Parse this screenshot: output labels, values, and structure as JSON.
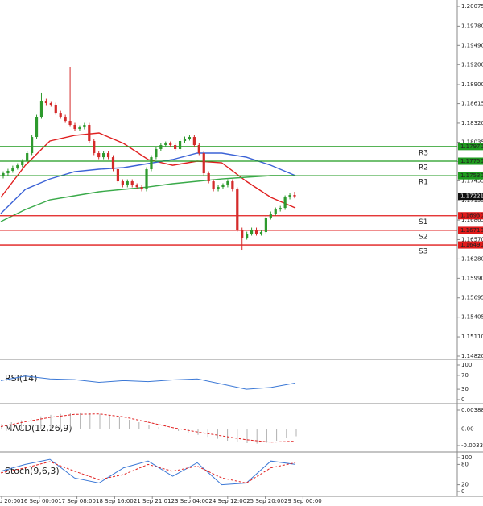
{
  "chart_data": {
    "type": "candlestick",
    "up_color": "#2e9a2e",
    "down_color": "#d42a2a",
    "ylim": [
      1.1482,
      1.20075
    ],
    "yticks": [
      1.20075,
      {
        "value": 1.1978,
        "label": "1.19780"
      },
      {
        "value": 1.1949,
        "label": "1.19490"
      },
      {
        "value": 1.192,
        "label": "1.19200"
      },
      {
        "value": 1.189,
        "label": "1.18900"
      },
      1.18615,
      {
        "value": 1.1832,
        "label": "1.18320"
      },
      1.18035,
      1.17745,
      1.17455,
      1.17155,
      1.16865,
      {
        "value": 1.1657,
        "label": "1.16570"
      },
      {
        "value": 1.1628,
        "label": "1.16280"
      },
      {
        "value": 1.1599,
        "label": "1.15990"
      },
      1.15695,
      1.15405,
      {
        "value": 1.1511,
        "label": "1.15110"
      },
      {
        "value": 1.1482,
        "label": "1.14820"
      }
    ],
    "x_labels": [
      "14 Sep 20:00",
      "16 Sep 00:00",
      "17 Sep 08:00",
      "18 Sep 16:00",
      "21 Sep 21:01",
      "23 Sep 04:00",
      "24 Sep 12:00",
      "25 Sep 20:00",
      "29 Sep 00:00"
    ],
    "open": [
      1.1752,
      1.17568,
      1.17605,
      1.17653,
      1.17689,
      1.1775,
      1.17871,
      1.18113,
      1.18416,
      1.18658,
      1.18622,
      1.18598,
      1.18476,
      1.18416,
      1.18355,
      1.18295,
      1.18234,
      1.18258,
      1.18295,
      1.18053,
      1.17871,
      1.1781,
      1.17871,
      1.1781,
      1.17629,
      1.17447,
      1.17387,
      1.17447,
      1.17387,
      1.17362,
      1.17326,
      1.17629,
      1.1781,
      1.17932,
      1.17992,
      1.18016,
      1.17992,
      1.17932,
      1.18053,
      1.18089,
      1.18113,
      1.17992,
      1.17871,
      1.17568,
      1.17447,
      1.17326,
      1.17362,
      1.17387,
      1.17447,
      1.17326,
      1.16721,
      1.16599,
      1.1666,
      1.16721,
      1.1666,
      1.16684,
      1.16902,
      1.16963,
      1.17023,
      1.17047,
      1.17205,
      1.17241
    ],
    "high": [
      1.17598,
      1.17635,
      1.17683,
      1.17719,
      1.1778,
      1.17901,
      1.18143,
      1.18446,
      1.1878,
      1.18688,
      1.18652,
      1.18628,
      1.18506,
      1.18446,
      1.19167,
      1.18325,
      1.18288,
      1.18325,
      1.18325,
      1.18083,
      1.17901,
      1.17901,
      1.17901,
      1.1784,
      1.17659,
      1.17477,
      1.17477,
      1.17477,
      1.17417,
      1.17392,
      1.17659,
      1.1784,
      1.17962,
      1.18022,
      1.18046,
      1.18046,
      1.18022,
      1.18083,
      1.18119,
      1.18143,
      1.18143,
      1.18022,
      1.17901,
      1.17598,
      1.17477,
      1.17392,
      1.17417,
      1.17477,
      1.17477,
      1.17356,
      1.16751,
      1.1669,
      1.16751,
      1.16751,
      1.16714,
      1.16932,
      1.16993,
      1.17053,
      1.17077,
      1.17235,
      1.17271,
      1.1729
    ],
    "low": [
      1.1749,
      1.17538,
      1.17575,
      1.17623,
      1.17659,
      1.1772,
      1.17841,
      1.18083,
      1.18386,
      1.18592,
      1.18568,
      1.18446,
      1.18386,
      1.18325,
      1.18265,
      1.18204,
      1.18204,
      1.18228,
      1.18023,
      1.17841,
      1.1778,
      1.1778,
      1.1778,
      1.17599,
      1.17417,
      1.17357,
      1.17357,
      1.17357,
      1.17332,
      1.17296,
      1.17296,
      1.17599,
      1.1778,
      1.17902,
      1.17962,
      1.17962,
      1.17902,
      1.17902,
      1.18023,
      1.18059,
      1.17962,
      1.17841,
      1.17538,
      1.17417,
      1.17296,
      1.17296,
      1.17332,
      1.17357,
      1.17296,
      1.16691,
      1.16418,
      1.16569,
      1.1663,
      1.1663,
      1.1663,
      1.16654,
      1.16872,
      1.16933,
      1.16993,
      1.17017,
      1.17175,
      1.17191
    ],
    "close": [
      1.17568,
      1.17605,
      1.17653,
      1.17689,
      1.1775,
      1.17871,
      1.18113,
      1.18416,
      1.18658,
      1.18622,
      1.18598,
      1.18476,
      1.18416,
      1.18355,
      1.18295,
      1.18234,
      1.18258,
      1.18295,
      1.18053,
      1.17871,
      1.1781,
      1.17871,
      1.1781,
      1.17629,
      1.17447,
      1.17387,
      1.17447,
      1.17387,
      1.17362,
      1.17326,
      1.17629,
      1.1781,
      1.17932,
      1.17992,
      1.18016,
      1.17992,
      1.17932,
      1.18053,
      1.18089,
      1.18113,
      1.17992,
      1.17871,
      1.17568,
      1.17447,
      1.17326,
      1.17362,
      1.17387,
      1.17447,
      1.17326,
      1.16721,
      1.16599,
      1.1666,
      1.16721,
      1.1666,
      1.16684,
      1.16902,
      1.16963,
      1.17023,
      1.17047,
      1.17205,
      1.17241,
      1.17221
    ],
    "moving_averages": [
      {
        "color": "#e02020",
        "values": [
          1.17205,
          1.17689,
          1.18053,
          1.18137,
          1.18174,
          1.18016,
          1.17774,
          1.17689,
          1.1775,
          1.17726,
          1.17447,
          1.17205,
          1.17047
        ]
      },
      {
        "color": "#3b62d6",
        "values": [
          1.16963,
          1.17326,
          1.17483,
          1.17592,
          1.17629,
          1.17653,
          1.17714,
          1.17774,
          1.17871,
          1.17871,
          1.1781,
          1.17689,
          1.17532
        ]
      },
      {
        "color": "#3aaa4a",
        "values": [
          1.16842,
          1.17023,
          1.17169,
          1.17229,
          1.1729,
          1.17326,
          1.17362,
          1.17411,
          1.17447,
          1.17483,
          1.17508,
          1.17532,
          1.17532
        ]
      }
    ],
    "levels": [
      {
        "name": "R3",
        "value": 1.1797,
        "value_label": "1.17970",
        "color": "#1f9a1f"
      },
      {
        "name": "R2",
        "value": 1.1775,
        "value_label": "1.17750",
        "color": "#1f9a1f"
      },
      {
        "name": "R1",
        "value": 1.1753,
        "value_label": "1.17530",
        "color": "#1f9a1f"
      },
      {
        "name": "S1",
        "value": 1.1693,
        "value_label": "1.16930",
        "color": "#e01b1b"
      },
      {
        "name": "S2",
        "value": 1.1671,
        "value_label": "1.16710",
        "color": "#e01b1b"
      },
      {
        "name": "S3",
        "value": 1.1649,
        "value_label": "1.16490",
        "color": "#e01b1b"
      }
    ],
    "rsi": {
      "label": "RSI(14)",
      "ylim": [
        0,
        100
      ],
      "yticks": [
        100,
        70,
        30,
        0
      ],
      "series": [
        {
          "color": "#3b78d6",
          "values": [
            55,
            68,
            60,
            58,
            50,
            55,
            52,
            57,
            60,
            45,
            30,
            35,
            48
          ]
        }
      ]
    },
    "macd": {
      "label": "MACD(12,26,9)",
      "ylim": [
        -0.00339,
        0.00388
      ],
      "yticks": [
        0.00388,
        {
          "value": 0,
          "label": "0.00"
        },
        -0.00339
      ],
      "histogram": {
        "color": "#b0b0b0",
        "values": [
          0.001,
          0.0014,
          0.0018,
          0.0022,
          0.0026,
          0.0029,
          0.0031,
          0.0033,
          0.0034,
          0.0033,
          0.0031,
          0.0028,
          0.0024,
          0.0019,
          0.0014,
          0.0009,
          0.0004,
          0.0,
          -0.0004,
          -0.0008,
          -0.0012,
          -0.0016,
          -0.002,
          -0.0024,
          -0.0027,
          -0.0029,
          -0.003,
          -0.0028,
          -0.0024,
          -0.0019,
          -0.0015
        ]
      },
      "series": [
        {
          "color": "#e02020",
          "dashed": true,
          "values": [
            0.0005,
            0.0015,
            0.0024,
            0.003,
            0.0031,
            0.0025,
            0.0014,
            0.0003,
            -0.0006,
            -0.0014,
            -0.0022,
            -0.0027,
            -0.0025
          ]
        }
      ]
    },
    "stoch": {
      "label": "Stoch(9,6,3)",
      "ylim": [
        0,
        100
      ],
      "yticks": [
        100,
        80,
        20,
        0
      ],
      "series": [
        {
          "color": "#3b78d6",
          "values": [
            60,
            80,
            95,
            40,
            25,
            70,
            90,
            45,
            85,
            20,
            25,
            90,
            80
          ]
        },
        {
          "color": "#e02020",
          "dashed": true,
          "values": [
            55,
            70,
            88,
            60,
            35,
            50,
            80,
            60,
            75,
            40,
            25,
            70,
            85
          ]
        }
      ]
    }
  }
}
